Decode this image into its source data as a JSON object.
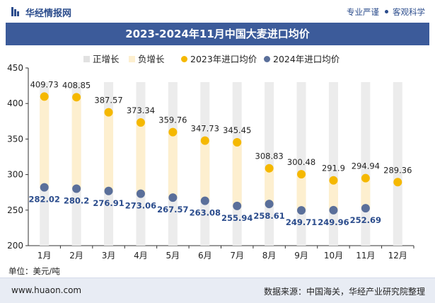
{
  "header": {
    "brand": "华经情报网",
    "slogan_left": "专业严谨",
    "slogan_right": "客观科学"
  },
  "chart_data": {
    "type": "line",
    "title": "2023-2024年11月中国大麦进口均价",
    "categories": [
      "1月",
      "2月",
      "3月",
      "4月",
      "5月",
      "6月",
      "7月",
      "8月",
      "9月",
      "10月",
      "11月",
      "12月"
    ],
    "series": [
      {
        "name": "2023年进口均价",
        "values": [
          409.73,
          408.85,
          387.57,
          373.34,
          359.76,
          347.73,
          345.45,
          308.83,
          300.48,
          291.9,
          294.94,
          289.36
        ],
        "color": "#f5b800"
      },
      {
        "name": "2024年进口均价",
        "values": [
          282.02,
          280.2,
          276.91,
          273.06,
          267.57,
          263.08,
          255.94,
          258.61,
          249.71,
          249.96,
          252.69,
          null
        ],
        "color": "#5a6f9a"
      }
    ],
    "bar_series": [
      {
        "name": "正增长",
        "color": "#e1e1e1"
      },
      {
        "name": "负增长",
        "color": "#fdefcf"
      }
    ],
    "ylim": [
      200,
      450
    ],
    "yticks": [
      200,
      250,
      300,
      350,
      400,
      450
    ],
    "value_labels_2023": [
      "409.73",
      "408.85",
      "387.57",
      "373.34",
      "359.76",
      "347.73",
      "345.45",
      "308.83",
      "300.48",
      "291.9",
      "294.94",
      "289.36"
    ],
    "value_labels_2024": [
      "282.02",
      "280.2",
      "276.91",
      "273.06",
      "267.57",
      "263.08",
      "255.94",
      "258.61",
      "249.71",
      "249.96",
      "252.69",
      ""
    ],
    "unit": "单位：美元/吨"
  },
  "footer": {
    "website": "www.huaon.com",
    "source": "数据来源：中国海关，华经产业研究院整理"
  }
}
